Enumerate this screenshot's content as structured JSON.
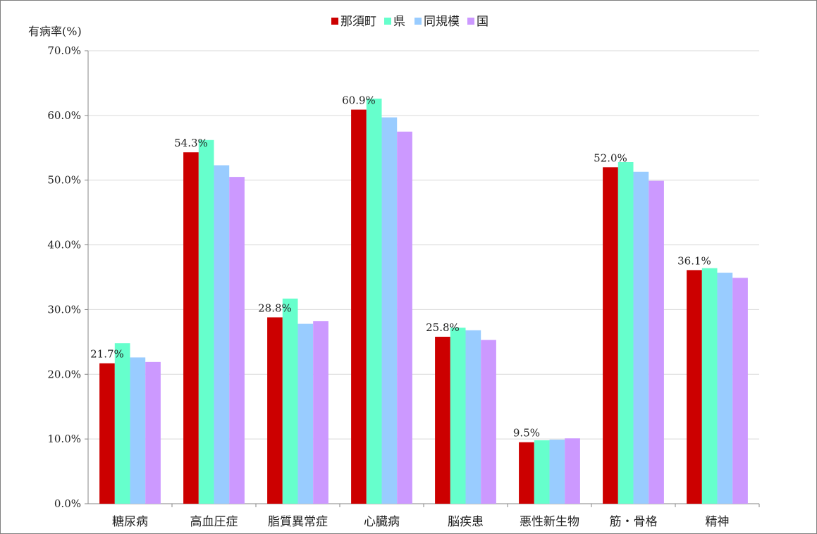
{
  "chart_data": {
    "type": "bar",
    "title": "",
    "ylabel": "有病率(%)",
    "xlabel": "",
    "ylim": [
      0,
      70
    ],
    "yticks": [
      "0.0%",
      "10.0%",
      "20.0%",
      "30.0%",
      "40.0%",
      "50.0%",
      "60.0%",
      "70.0%"
    ],
    "grid": true,
    "legend_position": "top-center",
    "categories": [
      "糖尿病",
      "高血圧症",
      "脂質異常症",
      "心臓病",
      "脳疾患",
      "悪性新生物",
      "筋・骨格",
      "精神"
    ],
    "series": [
      {
        "name": "那須町",
        "color": "#cc0000",
        "values": [
          21.7,
          54.3,
          28.8,
          60.9,
          25.8,
          9.5,
          52.0,
          36.1
        ]
      },
      {
        "name": "県",
        "color": "#66ffcc",
        "values": [
          24.8,
          56.2,
          31.7,
          62.6,
          27.2,
          9.8,
          52.8,
          36.4
        ]
      },
      {
        "name": "同規模",
        "color": "#99ccff",
        "values": [
          22.6,
          52.3,
          27.8,
          59.7,
          26.8,
          9.9,
          51.3,
          35.7
        ]
      },
      {
        "name": "国",
        "color": "#cc99ff",
        "values": [
          21.9,
          50.5,
          28.2,
          57.5,
          25.3,
          10.1,
          49.9,
          34.9
        ]
      }
    ],
    "data_labels": [
      "21.7%",
      "54.3%",
      "28.8%",
      "60.9%",
      "25.8%",
      "9.5%",
      "52.0%",
      "36.1%"
    ]
  }
}
